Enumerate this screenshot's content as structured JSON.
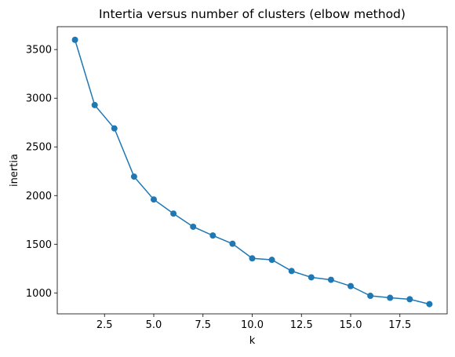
{
  "chart_data": {
    "type": "line",
    "title": "Intertia versus number of clusters (elbow method)",
    "xlabel": "k",
    "ylabel": "inertia",
    "xlim": [
      0.1,
      19.9
    ],
    "ylim": [
      785,
      3735
    ],
    "xticks": [
      2.5,
      5.0,
      7.5,
      10.0,
      12.5,
      15.0,
      17.5
    ],
    "xtick_labels": [
      "2.5",
      "5.0",
      "7.5",
      "10.0",
      "12.5",
      "15.0",
      "17.5"
    ],
    "yticks": [
      1000,
      1500,
      2000,
      2500,
      3000,
      3500
    ],
    "ytick_labels": [
      "1000",
      "1500",
      "2000",
      "2500",
      "3000",
      "3500"
    ],
    "grid": false,
    "legend": false,
    "marker": "circle",
    "color": "#1f77b4",
    "series": [
      {
        "x": [
          1,
          2,
          3,
          4,
          5,
          6,
          7,
          8,
          9,
          10,
          11,
          12,
          13,
          14,
          15,
          16,
          17,
          18,
          19
        ],
        "y": [
          3600,
          2930,
          2690,
          2195,
          1960,
          1815,
          1680,
          1590,
          1505,
          1355,
          1340,
          1225,
          1160,
          1135,
          1070,
          970,
          950,
          935,
          885
        ]
      }
    ]
  }
}
